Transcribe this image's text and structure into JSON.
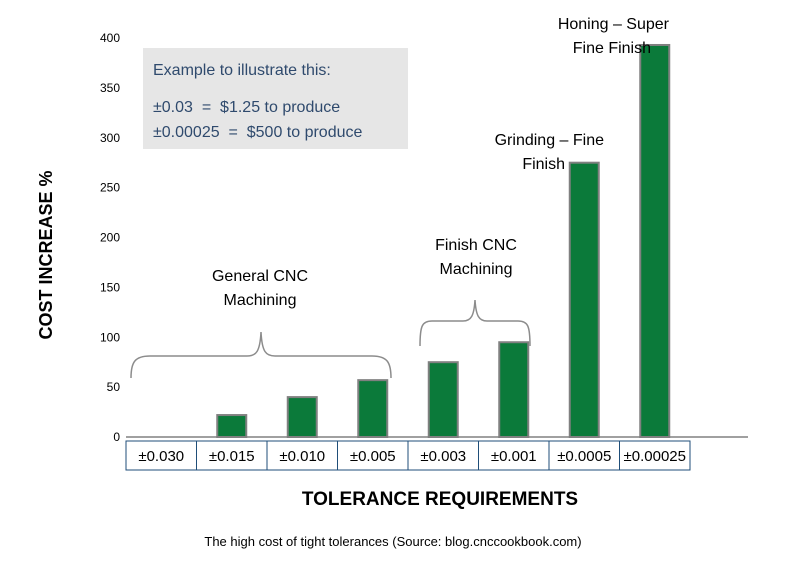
{
  "chart_data": {
    "type": "bar",
    "categories": [
      "±0.030",
      "±0.015",
      "±0.010",
      "±0.005",
      "±0.003",
      "±0.001",
      "±0.0005",
      "±0.00025"
    ],
    "values": [
      0,
      22,
      40,
      57,
      75,
      95,
      275,
      393
    ],
    "title": "",
    "xlabel": "TOLERANCE REQUIREMENTS",
    "ylabel": "COST INCREASE %",
    "ylim": [
      0,
      400
    ],
    "yticks": [
      0,
      50,
      100,
      150,
      200,
      250,
      300,
      350,
      400
    ],
    "bar_color": "#0b7a3a",
    "bar_outline_color": "#808080",
    "annotations": {
      "general_cnc": [
        "General CNC",
        "Machining"
      ],
      "finish_cnc": [
        "Finish CNC",
        "Machining"
      ],
      "grinding": [
        "Grinding – Fine",
        "Finish"
      ],
      "honing": [
        "Honing – Super",
        "Fine Finish"
      ]
    },
    "info_box": {
      "heading": "Example to illustrate this:",
      "line1": "±0.03  =  $1.25 to produce",
      "line2": "±0.00025  =  $500 to produce",
      "background": "#e6e6e6"
    },
    "caption": "The high cost of tight tolerances (Source: blog.cnccookbook.com)"
  }
}
